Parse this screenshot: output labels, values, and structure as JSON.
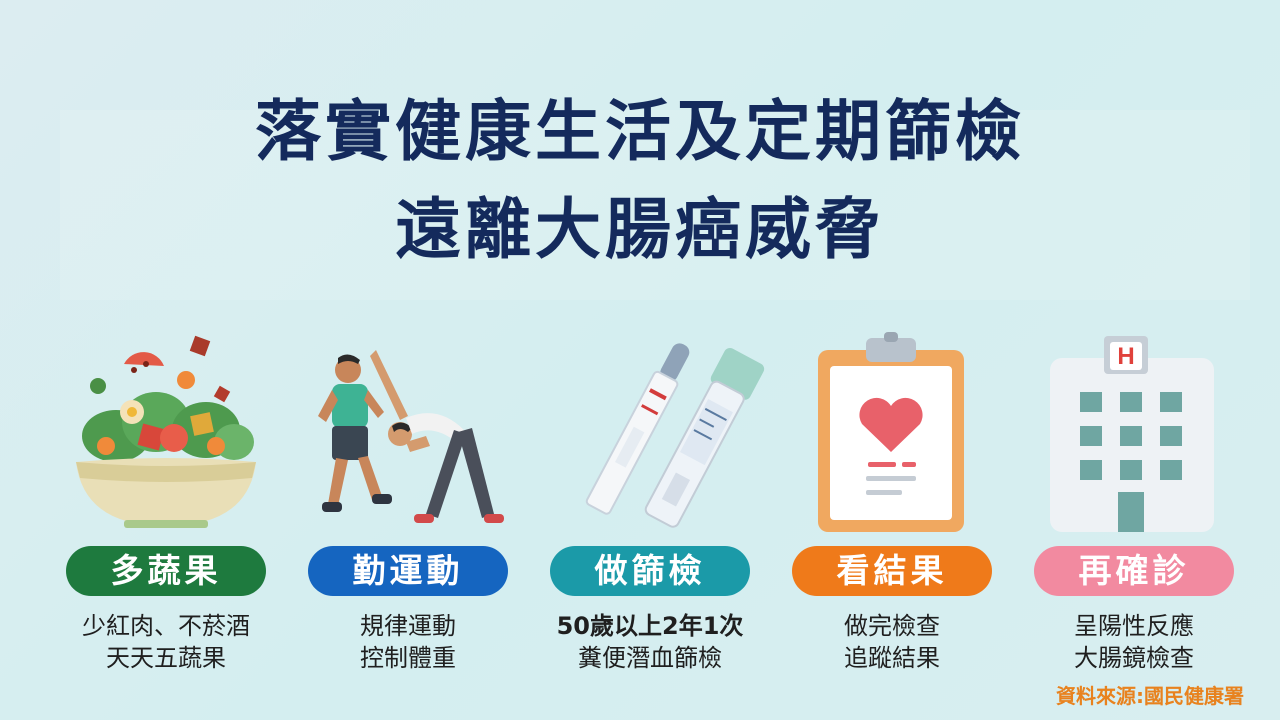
{
  "title": {
    "line1": "落實健康生活及定期篩檢",
    "line2": "遠離大腸癌威脅"
  },
  "steps": [
    {
      "label": "多蔬果",
      "color": "#1e7a3e",
      "icon": "salad-bowl-icon",
      "desc1": "少紅肉、不菸酒",
      "desc2": "天天五蔬果"
    },
    {
      "label": "勤運動",
      "color": "#1565c0",
      "icon": "exercise-people-icon",
      "desc1": "規律運動",
      "desc2": "控制體重"
    },
    {
      "label": "做篩檢",
      "color": "#1b9aa8",
      "icon": "stool-test-kit-icon",
      "desc1": "50歲以上2年1次",
      "desc2": "糞便潛血篩檢"
    },
    {
      "label": "看結果",
      "color": "#ef7a1a",
      "icon": "clipboard-heart-icon",
      "desc1": "做完檢查",
      "desc2": "追蹤結果"
    },
    {
      "label": "再確診",
      "color": "#f28aa0",
      "icon": "hospital-icon",
      "desc1": "呈陽性反應",
      "desc2": "大腸鏡檢查"
    }
  ],
  "source": "資料來源:國民健康署"
}
